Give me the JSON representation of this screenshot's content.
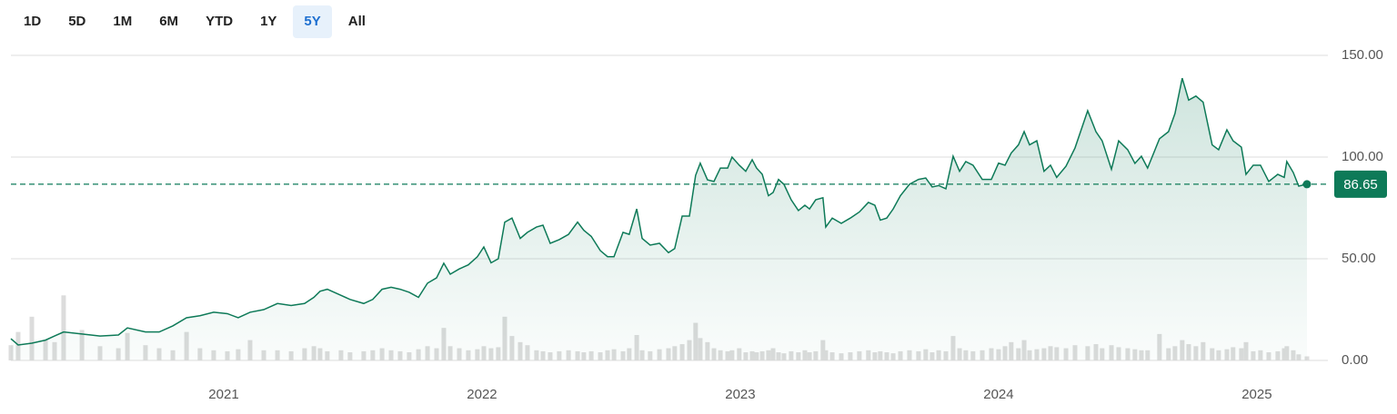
{
  "range_buttons": {
    "options": [
      "1D",
      "5D",
      "1M",
      "6M",
      "YTD",
      "1Y",
      "5Y",
      "All"
    ],
    "selected": 6
  },
  "chart_data": {
    "type": "line",
    "x": [
      2020.176,
      2020.204,
      2020.257,
      2020.31,
      2020.345,
      2020.38,
      2020.451,
      2020.521,
      2020.592,
      2020.627,
      2020.697,
      2020.75,
      2020.803,
      2020.856,
      2020.908,
      2020.961,
      2021.014,
      2021.056,
      2021.102,
      2021.155,
      2021.208,
      2021.261,
      2021.313,
      2021.349,
      2021.373,
      2021.401,
      2021.454,
      2021.489,
      2021.542,
      2021.577,
      2021.613,
      2021.648,
      2021.683,
      2021.718,
      2021.754,
      2021.789,
      2021.824,
      2021.852,
      2021.877,
      2021.912,
      2021.947,
      2021.982,
      2022.007,
      2022.035,
      2022.063,
      2022.088,
      2022.116,
      2022.148,
      2022.176,
      2022.211,
      2022.236,
      2022.264,
      2022.299,
      2022.335,
      2022.37,
      2022.394,
      2022.423,
      2022.458,
      2022.486,
      2022.511,
      2022.546,
      2022.57,
      2022.599,
      2022.62,
      2022.651,
      2022.687,
      2022.722,
      2022.746,
      2022.775,
      2022.803,
      2022.827,
      2022.845,
      2022.873,
      2022.898,
      2022.923,
      2022.951,
      2022.968,
      2022.996,
      2023.021,
      2023.046,
      2023.063,
      2023.085,
      2023.109,
      2023.127,
      2023.148,
      2023.169,
      2023.197,
      2023.225,
      2023.25,
      2023.268,
      2023.292,
      2023.32,
      2023.331,
      2023.356,
      2023.391,
      2023.426,
      2023.461,
      2023.496,
      2023.521,
      2023.542,
      2023.567,
      2023.592,
      2023.62,
      2023.655,
      2023.69,
      2023.718,
      2023.743,
      2023.768,
      2023.796,
      2023.824,
      2023.849,
      2023.873,
      2023.901,
      2023.937,
      2023.972,
      2024.0,
      2024.025,
      2024.049,
      2024.077,
      2024.099,
      2024.12,
      2024.148,
      2024.176,
      2024.201,
      2024.225,
      2024.261,
      2024.296,
      2024.345,
      2024.377,
      2024.401,
      2024.437,
      2024.465,
      2024.5,
      2024.528,
      2024.553,
      2024.577,
      2024.623,
      2024.658,
      2024.683,
      2024.711,
      2024.736,
      2024.764,
      2024.792,
      2024.827,
      2024.852,
      2024.884,
      2024.908,
      2024.94,
      2024.958,
      2024.986,
      2025.014,
      2025.046,
      2025.081,
      2025.106,
      2025.116,
      2025.141,
      2025.162,
      2025.194
    ],
    "series": [
      {
        "color": "#0e7a58",
        "values": [
          10.7,
          7.6,
          8.5,
          10,
          12,
          14,
          13,
          12,
          12.5,
          16,
          14,
          14,
          17,
          21,
          22,
          23.7,
          23,
          21,
          23.7,
          25,
          28,
          27,
          28,
          31,
          34,
          35,
          32,
          30,
          28,
          30,
          35,
          36,
          35,
          33.5,
          31,
          38,
          40.6,
          47.8,
          42.4,
          45,
          47,
          51,
          55.8,
          48,
          50,
          68,
          70,
          60,
          63,
          65.6,
          66.5,
          57.6,
          59.4,
          62,
          68,
          64,
          61,
          54,
          51,
          51,
          63,
          62,
          74.5,
          60,
          56.7,
          57.6,
          53,
          55,
          71,
          71,
          91,
          97,
          88.8,
          88,
          94.6,
          94.6,
          100,
          96,
          93,
          98.7,
          94.6,
          91.5,
          81,
          82.6,
          89,
          86.6,
          79,
          73.7,
          76.3,
          74.5,
          79,
          80,
          65.6,
          70,
          67.4,
          70,
          73,
          77.7,
          76.3,
          69,
          70,
          74.5,
          81,
          86.6,
          89,
          89.7,
          85.3,
          86,
          84.4,
          100.4,
          93,
          97.8,
          96,
          89,
          89,
          97,
          96,
          102,
          106,
          112.5,
          106,
          108,
          93,
          96,
          90,
          95.5,
          104.5,
          122.8,
          112.5,
          108,
          94,
          108,
          103.6,
          96.9,
          100.4,
          94.6,
          109,
          112.5,
          121.4,
          138.8,
          128,
          130,
          127,
          106,
          103.6,
          113.4,
          108,
          104.9,
          91.5,
          96,
          96,
          88,
          91.5,
          90,
          97.8,
          92.4,
          85.7,
          86.65
        ]
      },
      {
        "type": "bar",
        "axis": "y2",
        "color": "#dcdcdc",
        "values": [
          15,
          28,
          43,
          20,
          18,
          64,
          30,
          14,
          12,
          27,
          15,
          12,
          10,
          28,
          12,
          10,
          9,
          11,
          20,
          10,
          10,
          9,
          12,
          14,
          12,
          9,
          10,
          8,
          9,
          10,
          12,
          10,
          9,
          8,
          11,
          14,
          12,
          32,
          14,
          12,
          10,
          11,
          14,
          12,
          13,
          43,
          24,
          18,
          15,
          10,
          9,
          8,
          9,
          10,
          9,
          8,
          9,
          8,
          10,
          11,
          9,
          12,
          25,
          10,
          9,
          11,
          12,
          14,
          16,
          20,
          37,
          22,
          18,
          12,
          10,
          9,
          10,
          12,
          8,
          9,
          8,
          9,
          10,
          12,
          8,
          7,
          9,
          8,
          10,
          8,
          9,
          20,
          10,
          8,
          7,
          8,
          9,
          10,
          8,
          9,
          8,
          7,
          9,
          10,
          9,
          11,
          8,
          10,
          9,
          24,
          12,
          10,
          9,
          10,
          12,
          11,
          14,
          18,
          12,
          20,
          10,
          11,
          12,
          14,
          13,
          12,
          15,
          14,
          16,
          12,
          15,
          13,
          12,
          11,
          10,
          10,
          26,
          12,
          14,
          20,
          16,
          14,
          18,
          12,
          10,
          11,
          13,
          12,
          18,
          9,
          10,
          8,
          9,
          12,
          14,
          10,
          6,
          4
        ]
      }
    ],
    "xlim": [
      2020.176,
      2025.275
    ],
    "xticks": [
      2021,
      2022,
      2023,
      2024,
      2025
    ],
    "ylim": [
      0,
      150
    ],
    "yticks": [
      {
        "value": 0,
        "label": "0.00"
      },
      {
        "value": 50,
        "label": "50.00"
      },
      {
        "value": 100,
        "label": "100.00"
      },
      {
        "value": 150,
        "label": "150.00"
      }
    ],
    "y2lim": [
      0,
      100
    ],
    "last_price": 86.65,
    "grid": true
  }
}
